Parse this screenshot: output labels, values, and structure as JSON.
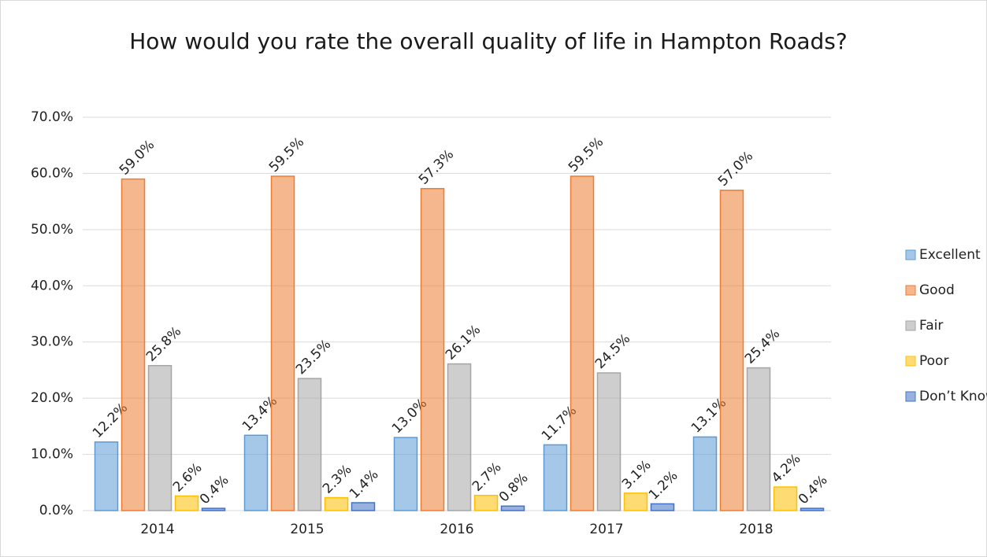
{
  "chart_data": {
    "type": "bar",
    "title": "How would you rate the overall quality of life in Hampton Roads?",
    "categories": [
      "2014",
      "2015",
      "2016",
      "2017",
      "2018"
    ],
    "series": [
      {
        "name": "Excellent",
        "color": "#5b9bd5",
        "values": [
          12.2,
          13.4,
          13.0,
          11.7,
          13.1
        ],
        "value_labels": [
          "12.2%",
          "13.4%",
          "13.0%",
          "11.7%",
          "13.1%"
        ]
      },
      {
        "name": "Good",
        "color": "#ed7d31",
        "values": [
          59.0,
          59.5,
          57.3,
          59.5,
          57.0
        ],
        "value_labels": [
          "59.0%",
          "59.5%",
          "57.3%",
          "59.5%",
          "57.0%"
        ]
      },
      {
        "name": "Fair",
        "color": "#a5a5a5",
        "values": [
          25.8,
          23.5,
          26.1,
          24.5,
          25.4
        ],
        "value_labels": [
          "25.8%",
          "23.5%",
          "26.1%",
          "24.5%",
          "25.4%"
        ]
      },
      {
        "name": "Poor",
        "color": "#ffc000",
        "values": [
          2.6,
          2.3,
          2.7,
          3.1,
          4.2
        ],
        "value_labels": [
          "2.6%",
          "2.3%",
          "2.7%",
          "3.1%",
          "4.2%"
        ]
      },
      {
        "name": "Don’t Know",
        "color": "#4472c4",
        "values": [
          0.4,
          1.4,
          0.8,
          1.2,
          0.4
        ],
        "value_labels": [
          "0.4%",
          "1.4%",
          "0.8%",
          "1.2%",
          "0.4%"
        ]
      }
    ],
    "ylim": [
      0,
      70
    ],
    "yticks": [
      {
        "value": 0,
        "label": "0.0%"
      },
      {
        "value": 10,
        "label": "10.0%"
      },
      {
        "value": 20,
        "label": "20.0%"
      },
      {
        "value": 30,
        "label": "30.0%"
      },
      {
        "value": 40,
        "label": "40.0%"
      },
      {
        "value": 50,
        "label": "50.0%"
      },
      {
        "value": 60,
        "label": "60.0%"
      },
      {
        "value": 70,
        "label": "70.0%"
      }
    ],
    "grid": true,
    "legend": "right"
  }
}
